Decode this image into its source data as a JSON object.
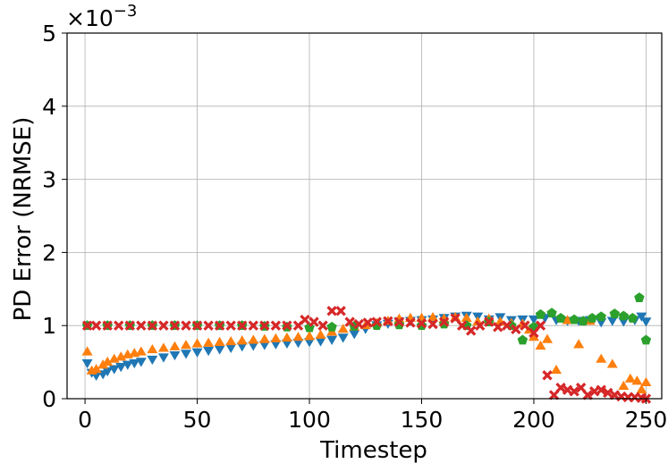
{
  "chart_data": {
    "type": "scatter",
    "title": "",
    "xlabel": "Timestep",
    "ylabel": "PD Error (NRMSE)",
    "y_scale_label": "×10",
    "y_scale_exponent": "−3",
    "xlim": [
      -8,
      257
    ],
    "ylim": [
      0,
      5
    ],
    "x_ticks": [
      0,
      50,
      100,
      150,
      200,
      250
    ],
    "y_ticks": [
      0,
      1,
      2,
      3,
      4,
      5
    ],
    "grid": true,
    "legend": "none",
    "series": [
      {
        "marker": "triangle-down",
        "color": "#1f77b4",
        "points": [
          [
            1,
            0.48
          ],
          [
            3,
            0.35
          ],
          [
            5,
            0.31
          ],
          [
            8,
            0.33
          ],
          [
            10,
            0.37
          ],
          [
            13,
            0.4
          ],
          [
            16,
            0.43
          ],
          [
            19,
            0.46
          ],
          [
            22,
            0.48
          ],
          [
            25,
            0.5
          ],
          [
            30,
            0.53
          ],
          [
            35,
            0.56
          ],
          [
            40,
            0.59
          ],
          [
            45,
            0.61
          ],
          [
            50,
            0.63
          ],
          [
            55,
            0.65
          ],
          [
            60,
            0.67
          ],
          [
            65,
            0.69
          ],
          [
            70,
            0.71
          ],
          [
            75,
            0.72
          ],
          [
            80,
            0.73
          ],
          [
            85,
            0.74
          ],
          [
            90,
            0.75
          ],
          [
            95,
            0.76
          ],
          [
            100,
            0.77
          ],
          [
            105,
            0.78
          ],
          [
            110,
            0.8
          ],
          [
            115,
            0.83
          ],
          [
            120,
            0.88
          ],
          [
            125,
            0.95
          ],
          [
            130,
            1.0
          ],
          [
            135,
            1.02
          ],
          [
            140,
            1.05
          ],
          [
            145,
            1.06
          ],
          [
            150,
            1.07
          ],
          [
            155,
            1.08
          ],
          [
            160,
            1.1
          ],
          [
            165,
            1.12
          ],
          [
            170,
            1.13
          ],
          [
            175,
            1.12
          ],
          [
            180,
            1.08
          ],
          [
            185,
            1.11
          ],
          [
            190,
            1.07
          ],
          [
            195,
            1.08
          ],
          [
            200,
            1.08
          ],
          [
            205,
            1.1
          ],
          [
            210,
            1.07
          ],
          [
            215,
            1.06
          ],
          [
            220,
            1.06
          ],
          [
            225,
            1.07
          ],
          [
            230,
            1.04
          ],
          [
            235,
            1.06
          ],
          [
            240,
            1.05
          ],
          [
            245,
            1.07
          ],
          [
            248,
            1.12
          ],
          [
            250,
            1.05
          ]
        ]
      },
      {
        "marker": "triangle-up",
        "color": "#ff7f0e",
        "points": [
          [
            1,
            0.65
          ],
          [
            3,
            0.39
          ],
          [
            5,
            0.41
          ],
          [
            8,
            0.47
          ],
          [
            10,
            0.51
          ],
          [
            13,
            0.55
          ],
          [
            16,
            0.58
          ],
          [
            19,
            0.61
          ],
          [
            22,
            0.63
          ],
          [
            25,
            0.65
          ],
          [
            30,
            0.68
          ],
          [
            35,
            0.7
          ],
          [
            40,
            0.72
          ],
          [
            45,
            0.74
          ],
          [
            50,
            0.76
          ],
          [
            55,
            0.77
          ],
          [
            60,
            0.78
          ],
          [
            65,
            0.79
          ],
          [
            70,
            0.8
          ],
          [
            75,
            0.81
          ],
          [
            80,
            0.82
          ],
          [
            85,
            0.83
          ],
          [
            90,
            0.84
          ],
          [
            95,
            0.85
          ],
          [
            100,
            0.86
          ],
          [
            105,
            0.88
          ],
          [
            110,
            0.92
          ],
          [
            115,
            0.96
          ],
          [
            120,
            0.99
          ],
          [
            125,
            1.01
          ],
          [
            130,
            1.04
          ],
          [
            135,
            1.07
          ],
          [
            140,
            1.1
          ],
          [
            145,
            1.11
          ],
          [
            150,
            1.11
          ],
          [
            155,
            1.12
          ],
          [
            160,
            1.1
          ],
          [
            165,
            1.12
          ],
          [
            170,
            1.11
          ],
          [
            175,
            1.06
          ],
          [
            180,
            1.1
          ],
          [
            185,
            1.06
          ],
          [
            190,
            1.04
          ],
          [
            195,
            1.03
          ],
          [
            198,
            0.95
          ],
          [
            200,
            0.85
          ],
          [
            203,
            0.73
          ],
          [
            206,
            0.82
          ],
          [
            210,
            0.4
          ],
          [
            215,
            1.08
          ],
          [
            220,
            0.75
          ],
          [
            225,
            1.07
          ],
          [
            230,
            0.55
          ],
          [
            235,
            0.48
          ],
          [
            240,
            0.18
          ],
          [
            243,
            0.28
          ],
          [
            246,
            0.25
          ],
          [
            248,
            0.13
          ],
          [
            250,
            0.23
          ]
        ]
      },
      {
        "marker": "pentagon",
        "color": "#2ca02c",
        "points": [
          [
            1,
            1.0
          ],
          [
            10,
            1.0
          ],
          [
            20,
            1.0
          ],
          [
            30,
            1.0
          ],
          [
            40,
            1.0
          ],
          [
            50,
            1.0
          ],
          [
            60,
            1.0
          ],
          [
            70,
            1.0
          ],
          [
            80,
            0.99
          ],
          [
            90,
            0.98
          ],
          [
            100,
            0.97
          ],
          [
            110,
            0.98
          ],
          [
            120,
            0.99
          ],
          [
            130,
            1.0
          ],
          [
            140,
            1.01
          ],
          [
            150,
            1.0
          ],
          [
            160,
            1.02
          ],
          [
            170,
            1.0
          ],
          [
            180,
            1.05
          ],
          [
            190,
            1.0
          ],
          [
            195,
            0.8
          ],
          [
            200,
            0.98
          ],
          [
            203,
            1.15
          ],
          [
            208,
            1.17
          ],
          [
            212,
            1.1
          ],
          [
            218,
            1.08
          ],
          [
            222,
            1.06
          ],
          [
            226,
            1.1
          ],
          [
            230,
            1.12
          ],
          [
            236,
            1.16
          ],
          [
            240,
            1.13
          ],
          [
            244,
            1.1
          ],
          [
            247,
            1.38
          ],
          [
            250,
            0.8
          ]
        ]
      },
      {
        "marker": "x-filled",
        "color": "#d62728",
        "points": [
          [
            1,
            1.0
          ],
          [
            5,
            1.0
          ],
          [
            10,
            1.0
          ],
          [
            15,
            1.0
          ],
          [
            20,
            1.0
          ],
          [
            25,
            1.0
          ],
          [
            30,
            1.0
          ],
          [
            35,
            1.0
          ],
          [
            40,
            1.0
          ],
          [
            45,
            1.0
          ],
          [
            50,
            1.0
          ],
          [
            55,
            1.0
          ],
          [
            60,
            1.0
          ],
          [
            65,
            1.0
          ],
          [
            70,
            1.0
          ],
          [
            75,
            1.0
          ],
          [
            80,
            1.0
          ],
          [
            85,
            1.0
          ],
          [
            90,
            1.0
          ],
          [
            95,
            1.0
          ],
          [
            98,
            1.08
          ],
          [
            102,
            1.05
          ],
          [
            106,
            1.0
          ],
          [
            110,
            1.2
          ],
          [
            114,
            1.2
          ],
          [
            118,
            1.05
          ],
          [
            122,
            1.02
          ],
          [
            126,
            1.04
          ],
          [
            130,
            1.05
          ],
          [
            135,
            1.06
          ],
          [
            140,
            1.05
          ],
          [
            145,
            1.04
          ],
          [
            150,
            1.03
          ],
          [
            155,
            1.02
          ],
          [
            160,
            1.05
          ],
          [
            165,
            1.1
          ],
          [
            168,
            1.0
          ],
          [
            172,
            0.93
          ],
          [
            176,
            1.0
          ],
          [
            180,
            1.05
          ],
          [
            184,
            0.98
          ],
          [
            188,
            1.0
          ],
          [
            192,
            0.95
          ],
          [
            196,
            1.0
          ],
          [
            200,
            0.9
          ],
          [
            203,
            1.0
          ],
          [
            206,
            0.32
          ],
          [
            209,
            0.05
          ],
          [
            212,
            0.15
          ],
          [
            215,
            0.12
          ],
          [
            218,
            0.1
          ],
          [
            221,
            0.15
          ],
          [
            224,
            0.05
          ],
          [
            227,
            0.1
          ],
          [
            230,
            0.12
          ],
          [
            233,
            0.08
          ],
          [
            236,
            0.05
          ],
          [
            239,
            0.03
          ],
          [
            242,
            0.02
          ],
          [
            245,
            0.02
          ],
          [
            248,
            0.01
          ],
          [
            250,
            0.0
          ]
        ]
      }
    ]
  }
}
